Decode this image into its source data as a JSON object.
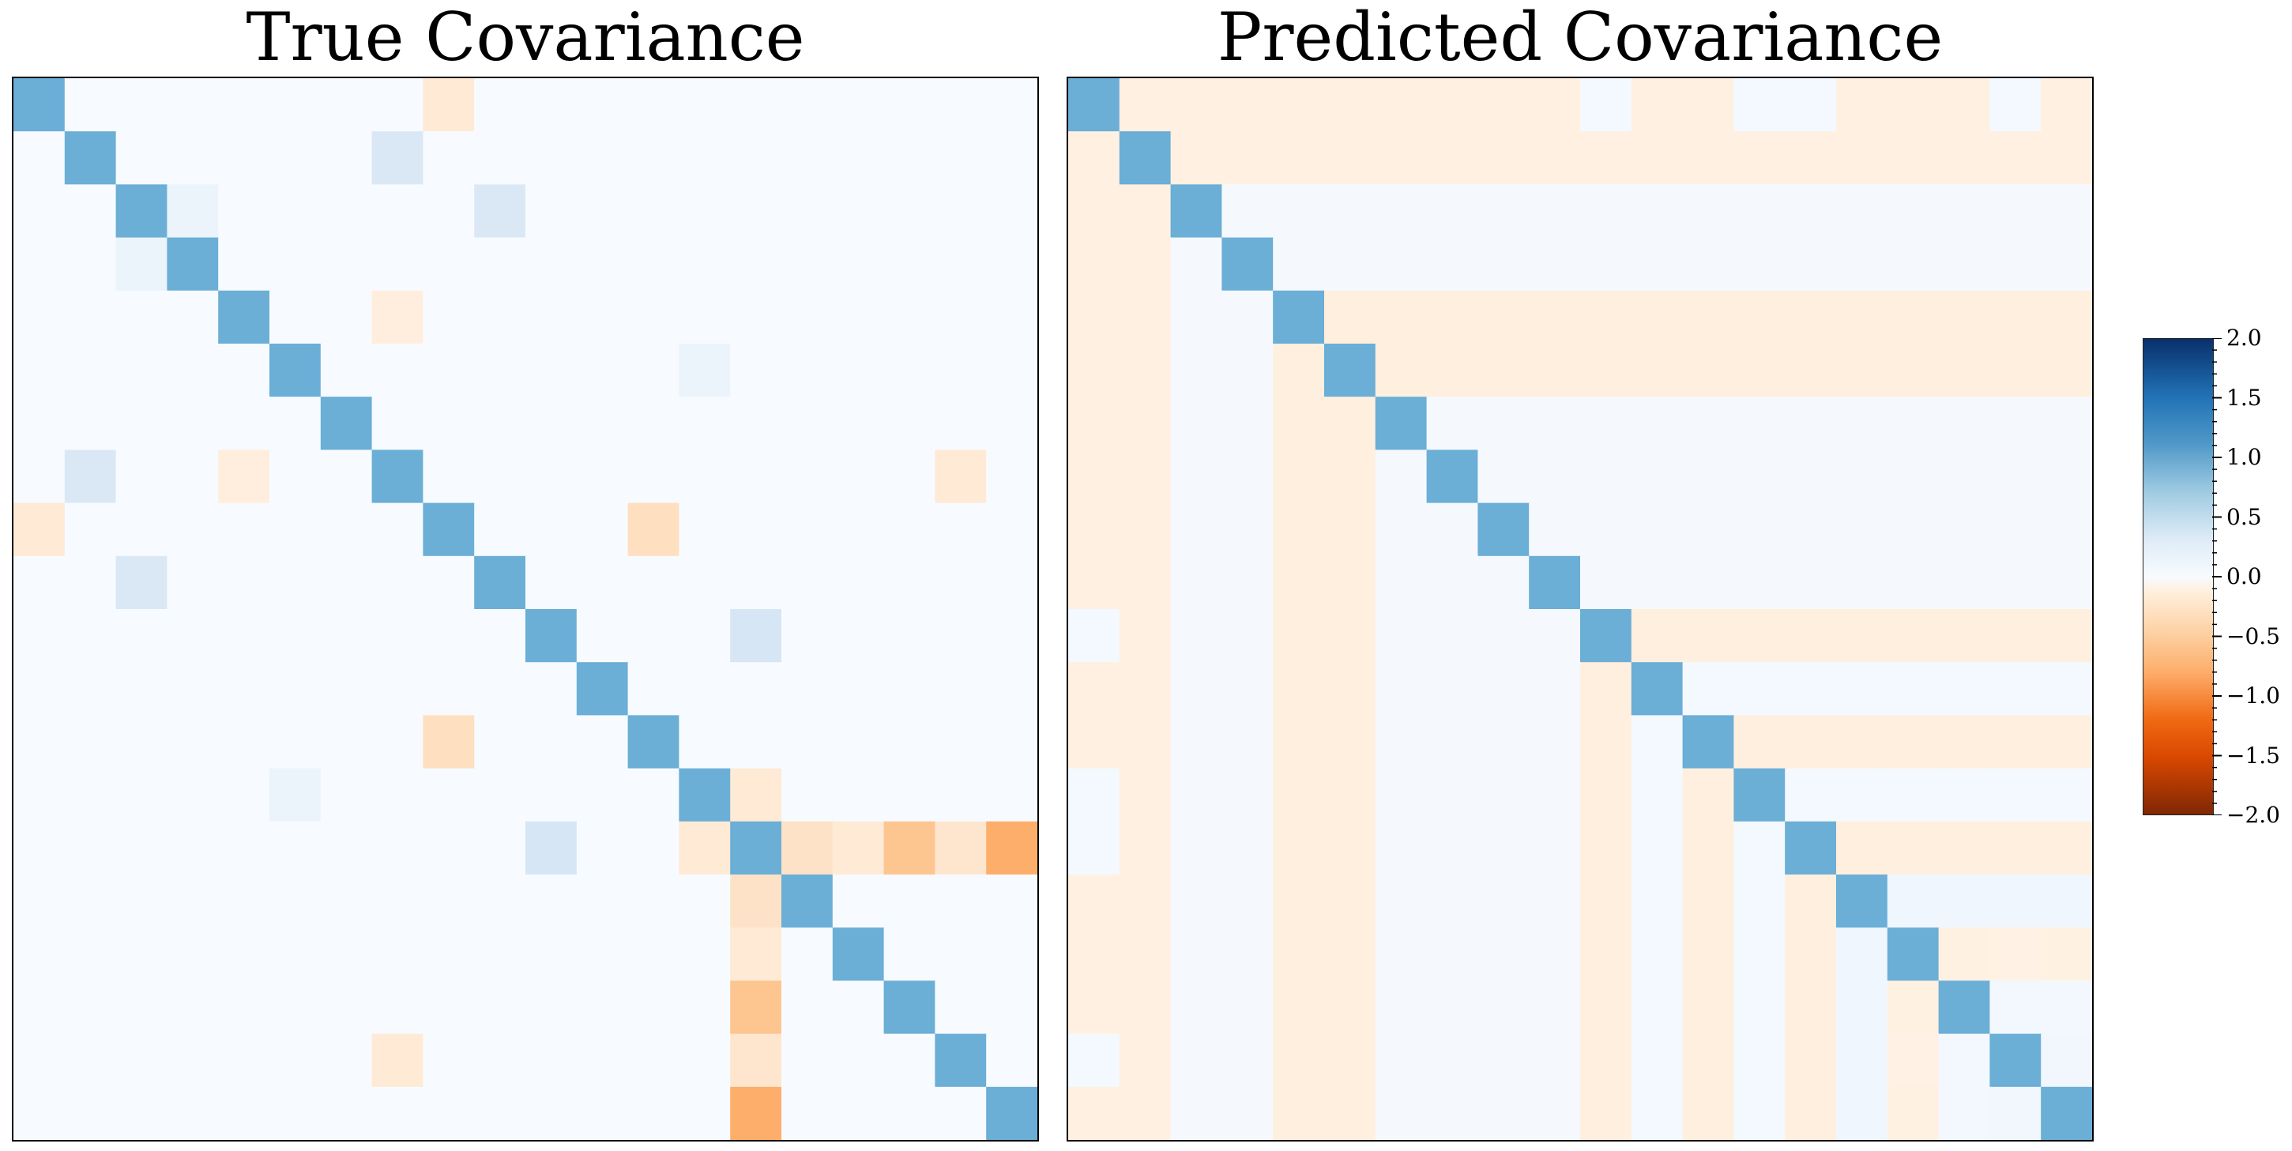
{
  "chart_data": [
    {
      "type": "heatmap",
      "title": "True Covariance",
      "size": 20,
      "diagonal_value": 1.0,
      "vmin": -2.0,
      "vmax": 2.0,
      "background_value": 0.0,
      "offdiagonal": [
        {
          "row": 0,
          "col": 8,
          "value": -0.15
        },
        {
          "row": 8,
          "col": 0,
          "value": -0.15
        },
        {
          "row": 1,
          "col": 7,
          "value": 0.25
        },
        {
          "row": 7,
          "col": 1,
          "value": 0.25
        },
        {
          "row": 2,
          "col": 3,
          "value": 0.1
        },
        {
          "row": 3,
          "col": 2,
          "value": 0.1
        },
        {
          "row": 2,
          "col": 9,
          "value": 0.25
        },
        {
          "row": 9,
          "col": 2,
          "value": 0.25
        },
        {
          "row": 4,
          "col": 7,
          "value": -0.1
        },
        {
          "row": 7,
          "col": 4,
          "value": -0.1
        },
        {
          "row": 5,
          "col": 13,
          "value": 0.1
        },
        {
          "row": 13,
          "col": 5,
          "value": 0.1
        },
        {
          "row": 7,
          "col": 18,
          "value": -0.15
        },
        {
          "row": 18,
          "col": 7,
          "value": -0.15
        },
        {
          "row": 8,
          "col": 12,
          "value": -0.3
        },
        {
          "row": 12,
          "col": 8,
          "value": -0.3
        },
        {
          "row": 10,
          "col": 14,
          "value": 0.3
        },
        {
          "row": 14,
          "col": 10,
          "value": 0.3
        },
        {
          "row": 13,
          "col": 14,
          "value": -0.15
        },
        {
          "row": 14,
          "col": 13,
          "value": -0.15
        },
        {
          "row": 14,
          "col": 15,
          "value": -0.25
        },
        {
          "row": 15,
          "col": 14,
          "value": -0.25
        },
        {
          "row": 14,
          "col": 18,
          "value": -0.2
        },
        {
          "row": 18,
          "col": 14,
          "value": -0.2
        },
        {
          "row": 14,
          "col": 19,
          "value": -0.8
        },
        {
          "row": 19,
          "col": 14,
          "value": -0.8
        },
        {
          "row": 14,
          "col": 16,
          "value": -0.15
        },
        {
          "row": 16,
          "col": 14,
          "value": -0.15
        },
        {
          "row": 14,
          "col": 17,
          "value": -0.6
        },
        {
          "row": 17,
          "col": 14,
          "value": -0.6
        }
      ]
    },
    {
      "type": "heatmap",
      "title": "Predicted Covariance",
      "size": 20,
      "diagonal_value": 1.0,
      "vmin": -2.0,
      "vmax": 2.0,
      "row_band_values": [
        -0.07,
        -0.07,
        0.02,
        0.02,
        -0.08,
        -0.08,
        0.02,
        0.02,
        0.02,
        0.02,
        -0.08,
        0.03,
        -0.08,
        0.03,
        -0.08,
        0.06,
        -0.05,
        0.04,
        0.02,
        0.0
      ],
      "overrides": [
        {
          "row": 0,
          "col": 10,
          "value": 0.03
        },
        {
          "row": 10,
          "col": 0,
          "value": 0.03
        },
        {
          "row": 0,
          "col": 13,
          "value": 0.03
        },
        {
          "row": 13,
          "col": 0,
          "value": 0.03
        },
        {
          "row": 0,
          "col": 14,
          "value": 0.03
        },
        {
          "row": 14,
          "col": 0,
          "value": 0.03
        },
        {
          "row": 0,
          "col": 18,
          "value": 0.03
        },
        {
          "row": 18,
          "col": 0,
          "value": 0.03
        },
        {
          "row": 11,
          "col": 12,
          "value": 0.03
        },
        {
          "row": 12,
          "col": 11,
          "value": 0.03
        },
        {
          "row": 11,
          "col": 14,
          "value": 0.03
        },
        {
          "row": 14,
          "col": 11,
          "value": 0.03
        },
        {
          "row": 11,
          "col": 15,
          "value": 0.03
        },
        {
          "row": 15,
          "col": 11,
          "value": 0.03
        },
        {
          "row": 11,
          "col": 16,
          "value": 0.03
        },
        {
          "row": 16,
          "col": 11,
          "value": 0.03
        },
        {
          "row": 11,
          "col": 17,
          "value": 0.03
        },
        {
          "row": 17,
          "col": 11,
          "value": 0.03
        },
        {
          "row": 11,
          "col": 19,
          "value": 0.03
        },
        {
          "row": 19,
          "col": 11,
          "value": 0.03
        },
        {
          "row": 16,
          "col": 17,
          "value": -0.06
        },
        {
          "row": 17,
          "col": 16,
          "value": -0.06
        },
        {
          "row": 16,
          "col": 19,
          "value": -0.06
        },
        {
          "row": 19,
          "col": 16,
          "value": -0.06
        },
        {
          "row": 17,
          "col": 18,
          "value": 0.04
        },
        {
          "row": 18,
          "col": 17,
          "value": 0.04
        },
        {
          "row": 18,
          "col": 19,
          "value": 0.05
        },
        {
          "row": 19,
          "col": 18,
          "value": 0.05
        }
      ]
    }
  ],
  "colorbar": {
    "ticks": [
      "2.0",
      "1.5",
      "1.0",
      "0.5",
      "0.0",
      "−0.5",
      "−1.0",
      "−1.5",
      "−2.0"
    ],
    "tick_values": [
      2.0,
      1.5,
      1.0,
      0.5,
      0.0,
      -0.5,
      -1.0,
      -1.5,
      -2.0
    ],
    "vmin": -2.0,
    "vmax": 2.0
  }
}
